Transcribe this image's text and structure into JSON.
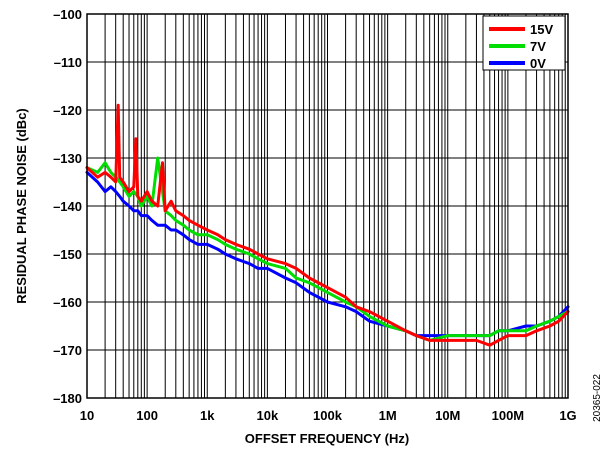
{
  "figure_id": "20365-022",
  "chart_data": {
    "type": "line",
    "title": "",
    "xlabel": "OFFSET FREQUENCY (Hz)",
    "ylabel": "RESIDUAL PHASE NOISE (dBc)",
    "x_scale": "log",
    "xlim": [
      10,
      1000000000
    ],
    "ylim": [
      -180,
      -100
    ],
    "x_ticks": [
      10,
      100,
      1000,
      10000,
      100000,
      1000000,
      10000000,
      100000000,
      1000000000
    ],
    "x_tick_labels": [
      "10",
      "100",
      "1k",
      "10k",
      "100k",
      "1M",
      "10M",
      "100M",
      "1G"
    ],
    "y_ticks": [
      -100,
      -110,
      -120,
      -130,
      -140,
      -150,
      -160,
      -170,
      -180
    ],
    "y_tick_labels": [
      "–100",
      "–110",
      "–120",
      "–130",
      "–140",
      "–150",
      "–160",
      "–170",
      "–180"
    ],
    "grid": true,
    "legend_position": "top-right",
    "series": [
      {
        "name": "15V",
        "color": "#ff0000",
        "x": [
          10,
          15,
          20,
          25,
          30,
          33,
          35,
          40,
          50,
          60,
          65,
          70,
          80,
          100,
          120,
          150,
          180,
          200,
          250,
          300,
          400,
          500,
          700,
          1000,
          1500,
          2000,
          3000,
          5000,
          7000,
          10000,
          20000,
          30000,
          50000,
          100000,
          200000,
          300000,
          500000,
          1000000,
          2000000,
          3000000,
          5000000,
          10000000,
          20000000,
          30000000,
          50000000,
          70000000,
          100000000,
          200000000,
          300000000,
          500000000,
          700000000,
          1000000000
        ],
        "y": [
          -132,
          -134,
          -133,
          -134,
          -135,
          -119,
          -134,
          -135,
          -137,
          -136,
          -126,
          -138,
          -139,
          -137,
          -139,
          -140,
          -131,
          -141,
          -139,
          -141,
          -142,
          -143,
          -144,
          -145,
          -146,
          -147,
          -148,
          -149,
          -150,
          -151,
          -152,
          -153,
          -155,
          -157,
          -159,
          -161,
          -162,
          -164,
          -166,
          -167,
          -168,
          -168,
          -168,
          -168,
          -169,
          -168,
          -167,
          -167,
          -166,
          -165,
          -164,
          -162
        ]
      },
      {
        "name": "7V",
        "color": "#00dd00",
        "x": [
          10,
          15,
          20,
          25,
          30,
          35,
          40,
          50,
          60,
          70,
          80,
          100,
          120,
          150,
          200,
          250,
          300,
          400,
          500,
          700,
          1000,
          1500,
          2000,
          3000,
          5000,
          7000,
          10000,
          20000,
          30000,
          50000,
          100000,
          200000,
          300000,
          500000,
          1000000,
          2000000,
          3000000,
          5000000,
          10000000,
          20000000,
          30000000,
          50000000,
          70000000,
          100000000,
          200000000,
          300000000,
          500000000,
          700000000,
          1000000000
        ],
        "y": [
          -132,
          -133,
          -131,
          -133,
          -134,
          -135,
          -136,
          -138,
          -137,
          -138,
          -140,
          -138,
          -140,
          -130,
          -141,
          -142,
          -143,
          -144,
          -145,
          -146,
          -146,
          -147,
          -148,
          -149,
          -150,
          -151,
          -152,
          -153,
          -155,
          -156,
          -158,
          -160,
          -161,
          -163,
          -165,
          -166,
          -167,
          -168,
          -167,
          -167,
          -167,
          -167,
          -166,
          -166,
          -166,
          -165,
          -164,
          -163,
          -162
        ]
      },
      {
        "name": "0V",
        "color": "#0000ff",
        "x": [
          10,
          15,
          20,
          25,
          30,
          35,
          40,
          50,
          60,
          70,
          80,
          100,
          120,
          150,
          200,
          250,
          300,
          400,
          500,
          700,
          1000,
          1500,
          2000,
          3000,
          5000,
          7000,
          10000,
          20000,
          30000,
          50000,
          100000,
          200000,
          300000,
          500000,
          1000000,
          2000000,
          3000000,
          5000000,
          10000000,
          20000000,
          30000000,
          50000000,
          70000000,
          100000000,
          200000000,
          300000000,
          500000000,
          700000000,
          1000000000
        ],
        "y": [
          -133,
          -135,
          -137,
          -136,
          -137,
          -138,
          -139,
          -140,
          -141,
          -141,
          -142,
          -142,
          -143,
          -144,
          -144,
          -145,
          -145,
          -146,
          -147,
          -148,
          -148,
          -149,
          -150,
          -151,
          -152,
          -153,
          -153,
          -155,
          -156,
          -158,
          -160,
          -161,
          -162,
          -164,
          -165,
          -166,
          -167,
          -167,
          -167,
          -167,
          -167,
          -167,
          -166,
          -166,
          -165,
          -165,
          -164,
          -163,
          -161
        ]
      }
    ]
  }
}
